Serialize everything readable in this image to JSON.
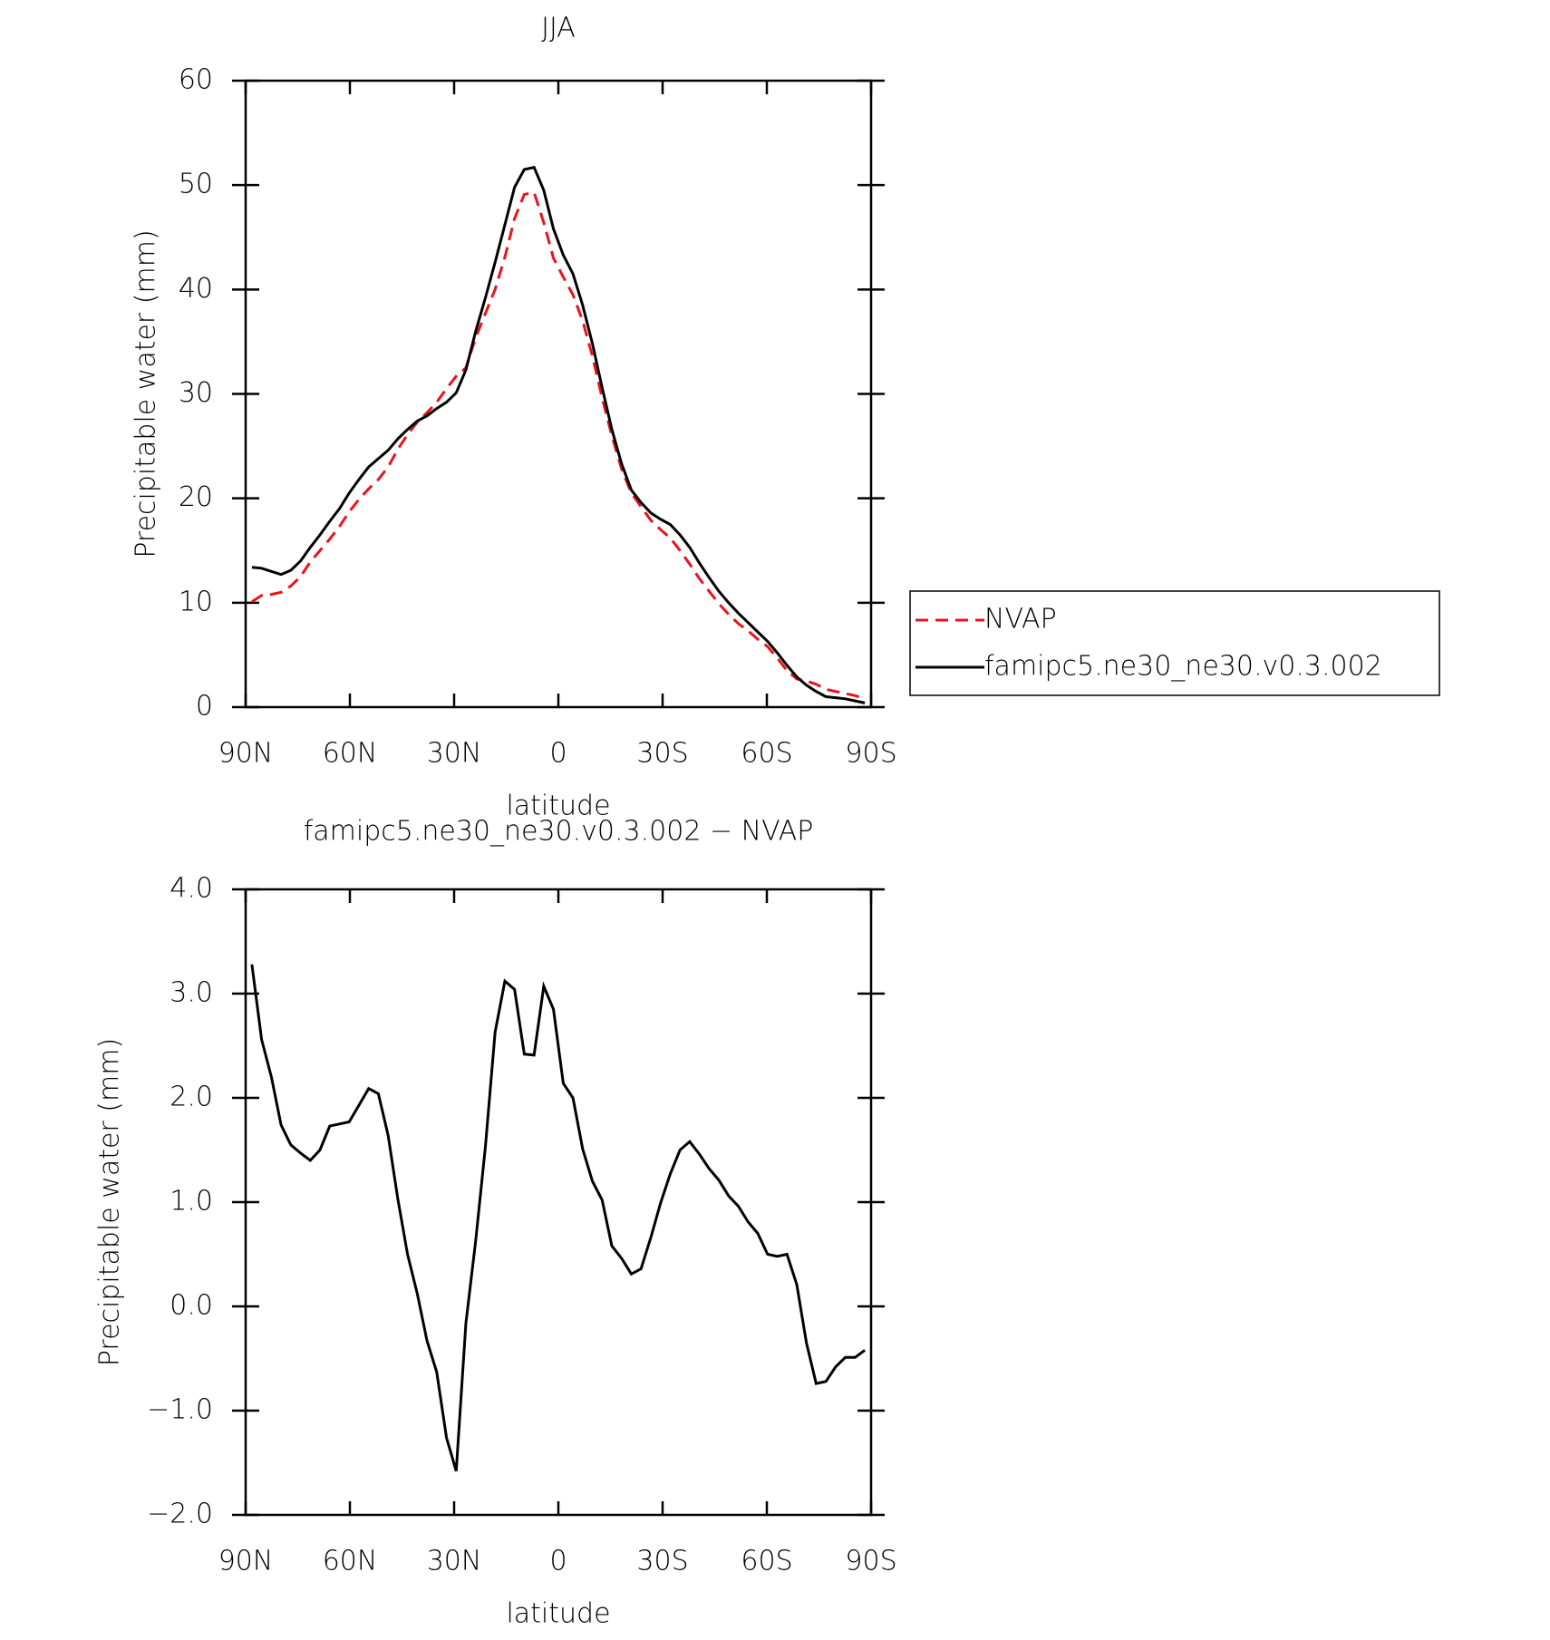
{
  "chart_data": [
    {
      "type": "line",
      "title": "JJA",
      "xlabel": "latitude",
      "ylabel": "Precipitable water (mm)",
      "x": [
        88.2,
        85.4,
        82.6,
        79.8,
        77,
        74.2,
        71.4,
        68.6,
        65.8,
        63,
        60.2,
        57.4,
        54.6,
        51.8,
        49,
        46.2,
        43.4,
        40.6,
        37.8,
        35,
        32.2,
        29.4,
        26.6,
        23.8,
        21,
        18.2,
        15.4,
        12.6,
        9.8,
        7,
        4.2,
        1.4,
        -1.4,
        -4.2,
        -7,
        -9.8,
        -12.6,
        -15.4,
        -18.2,
        -21,
        -23.8,
        -26.6,
        -29.4,
        -32.2,
        -35,
        -37.8,
        -40.6,
        -43.4,
        -46.2,
        -49,
        -51.8,
        -54.6,
        -57.4,
        -60.2,
        -63,
        -65.8,
        -68.6,
        -71.4,
        -74.2,
        -77,
        -79.8,
        -82.6,
        -85.4,
        -88.2
      ],
      "series": [
        {
          "name": "NVAP",
          "color": "#e8141c",
          "dashed": true,
          "values": [
            10.1,
            10.7,
            10.8,
            11.0,
            11.6,
            12.5,
            13.9,
            15.0,
            16.1,
            17.3,
            18.7,
            19.9,
            20.9,
            21.8,
            23.0,
            24.7,
            26.1,
            27.3,
            28.2,
            29.2,
            30.5,
            31.7,
            32.5,
            35.4,
            37.7,
            40.0,
            43.1,
            46.8,
            49.1,
            49.3,
            46.4,
            43.0,
            41.2,
            39.5,
            37.0,
            33.6,
            29.6,
            26.0,
            22.8,
            20.5,
            19.2,
            17.9,
            17.0,
            16.2,
            15.0,
            13.7,
            12.3,
            11.1,
            9.9,
            8.9,
            8.0,
            7.3,
            6.5,
            5.8,
            4.7,
            3.5,
            2.7,
            2.5,
            2.2,
            1.7,
            1.5,
            1.3,
            1.1,
            0.8
          ]
        },
        {
          "name": "famipc5.ne30_ne30.v0.3.002",
          "color": "#000000",
          "dashed": false,
          "values": [
            13.4,
            13.3,
            13.0,
            12.7,
            13.1,
            14.0,
            15.3,
            16.5,
            17.8,
            19.0,
            20.5,
            21.8,
            23.0,
            23.8,
            24.6,
            25.7,
            26.6,
            27.4,
            27.9,
            28.6,
            29.2,
            30.1,
            32.3,
            36.0,
            39.2,
            42.6,
            46.2,
            49.8,
            51.5,
            51.7,
            49.5,
            45.8,
            43.3,
            41.5,
            38.5,
            34.8,
            30.6,
            26.6,
            23.3,
            20.8,
            19.6,
            18.6,
            18.0,
            17.5,
            16.5,
            15.3,
            13.8,
            12.4,
            11.1,
            10.0,
            9.0,
            8.1,
            7.2,
            6.3,
            5.2,
            4.0,
            2.9,
            2.1,
            1.5,
            1.0,
            0.9,
            0.8,
            0.6,
            0.4
          ]
        }
      ],
      "xlim": [
        90,
        -90
      ],
      "xticks": [
        {
          "value": 90,
          "label": "90N"
        },
        {
          "value": 60,
          "label": "60N"
        },
        {
          "value": 30,
          "label": "30N"
        },
        0,
        {
          "value": -30,
          "label": "30S"
        },
        {
          "value": -60,
          "label": "60S"
        },
        {
          "value": -90,
          "label": "90S"
        }
      ],
      "ylim": [
        0,
        60
      ],
      "yticks": [
        0,
        10,
        20,
        30,
        40,
        50,
        60
      ],
      "legend": "right"
    },
    {
      "type": "line",
      "title": "famipc5.ne30_ne30.v0.3.002 − NVAP",
      "xlabel": "latitude",
      "ylabel": "Precipitable water (mm)",
      "x": [
        88.2,
        85.4,
        82.6,
        79.8,
        77,
        74.2,
        71.4,
        68.6,
        65.8,
        63,
        60.2,
        57.4,
        54.6,
        51.8,
        49,
        46.2,
        43.4,
        40.6,
        37.8,
        35,
        32.2,
        29.4,
        26.6,
        23.8,
        21,
        18.2,
        15.4,
        12.6,
        9.8,
        7,
        4.2,
        1.4,
        -1.4,
        -4.2,
        -7,
        -9.8,
        -12.6,
        -15.4,
        -18.2,
        -21,
        -23.8,
        -26.6,
        -29.4,
        -32.2,
        -35,
        -37.8,
        -40.6,
        -43.4,
        -46.2,
        -49,
        -51.8,
        -54.6,
        -57.4,
        -60.2,
        -63,
        -65.8,
        -68.6,
        -71.4,
        -74.2,
        -77,
        -79.8,
        -82.6,
        -85.4,
        -88.2
      ],
      "values": [
        3.28,
        2.56,
        2.2,
        1.74,
        1.55,
        1.47,
        1.4,
        1.5,
        1.73,
        1.75,
        1.77,
        1.93,
        2.09,
        2.04,
        1.64,
        1.03,
        0.5,
        0.12,
        -0.33,
        -0.63,
        -1.26,
        -1.58,
        -0.16,
        0.63,
        1.53,
        2.63,
        3.12,
        3.04,
        2.42,
        2.41,
        3.07,
        2.85,
        2.14,
        2.0,
        1.51,
        1.2,
        1.02,
        0.58,
        0.46,
        0.31,
        0.36,
        0.66,
        0.99,
        1.27,
        1.5,
        1.58,
        1.46,
        1.32,
        1.21,
        1.06,
        0.96,
        0.81,
        0.7,
        0.5,
        0.48,
        0.5,
        0.21,
        -0.35,
        -0.74,
        -0.72,
        -0.58,
        -0.49,
        -0.49,
        -0.42
      ],
      "color": "#000000",
      "xlim": [
        90,
        -90
      ],
      "xticks": [
        {
          "value": 90,
          "label": "90N"
        },
        {
          "value": 60,
          "label": "60N"
        },
        {
          "value": 30,
          "label": "30N"
        },
        0,
        {
          "value": -30,
          "label": "30S"
        },
        {
          "value": -60,
          "label": "60S"
        },
        {
          "value": -90,
          "label": "90S"
        }
      ],
      "ylim": [
        -2,
        4
      ],
      "yticks": [
        {
          "value": -2,
          "label": "−2.0"
        },
        {
          "value": -1,
          "label": "−1.0"
        },
        {
          "value": 0,
          "label": "0.0"
        },
        {
          "value": 1,
          "label": "1.0"
        },
        {
          "value": 2,
          "label": "2.0"
        },
        {
          "value": 3,
          "label": "3.0"
        },
        {
          "value": 4,
          "label": "4.0"
        }
      ]
    }
  ]
}
